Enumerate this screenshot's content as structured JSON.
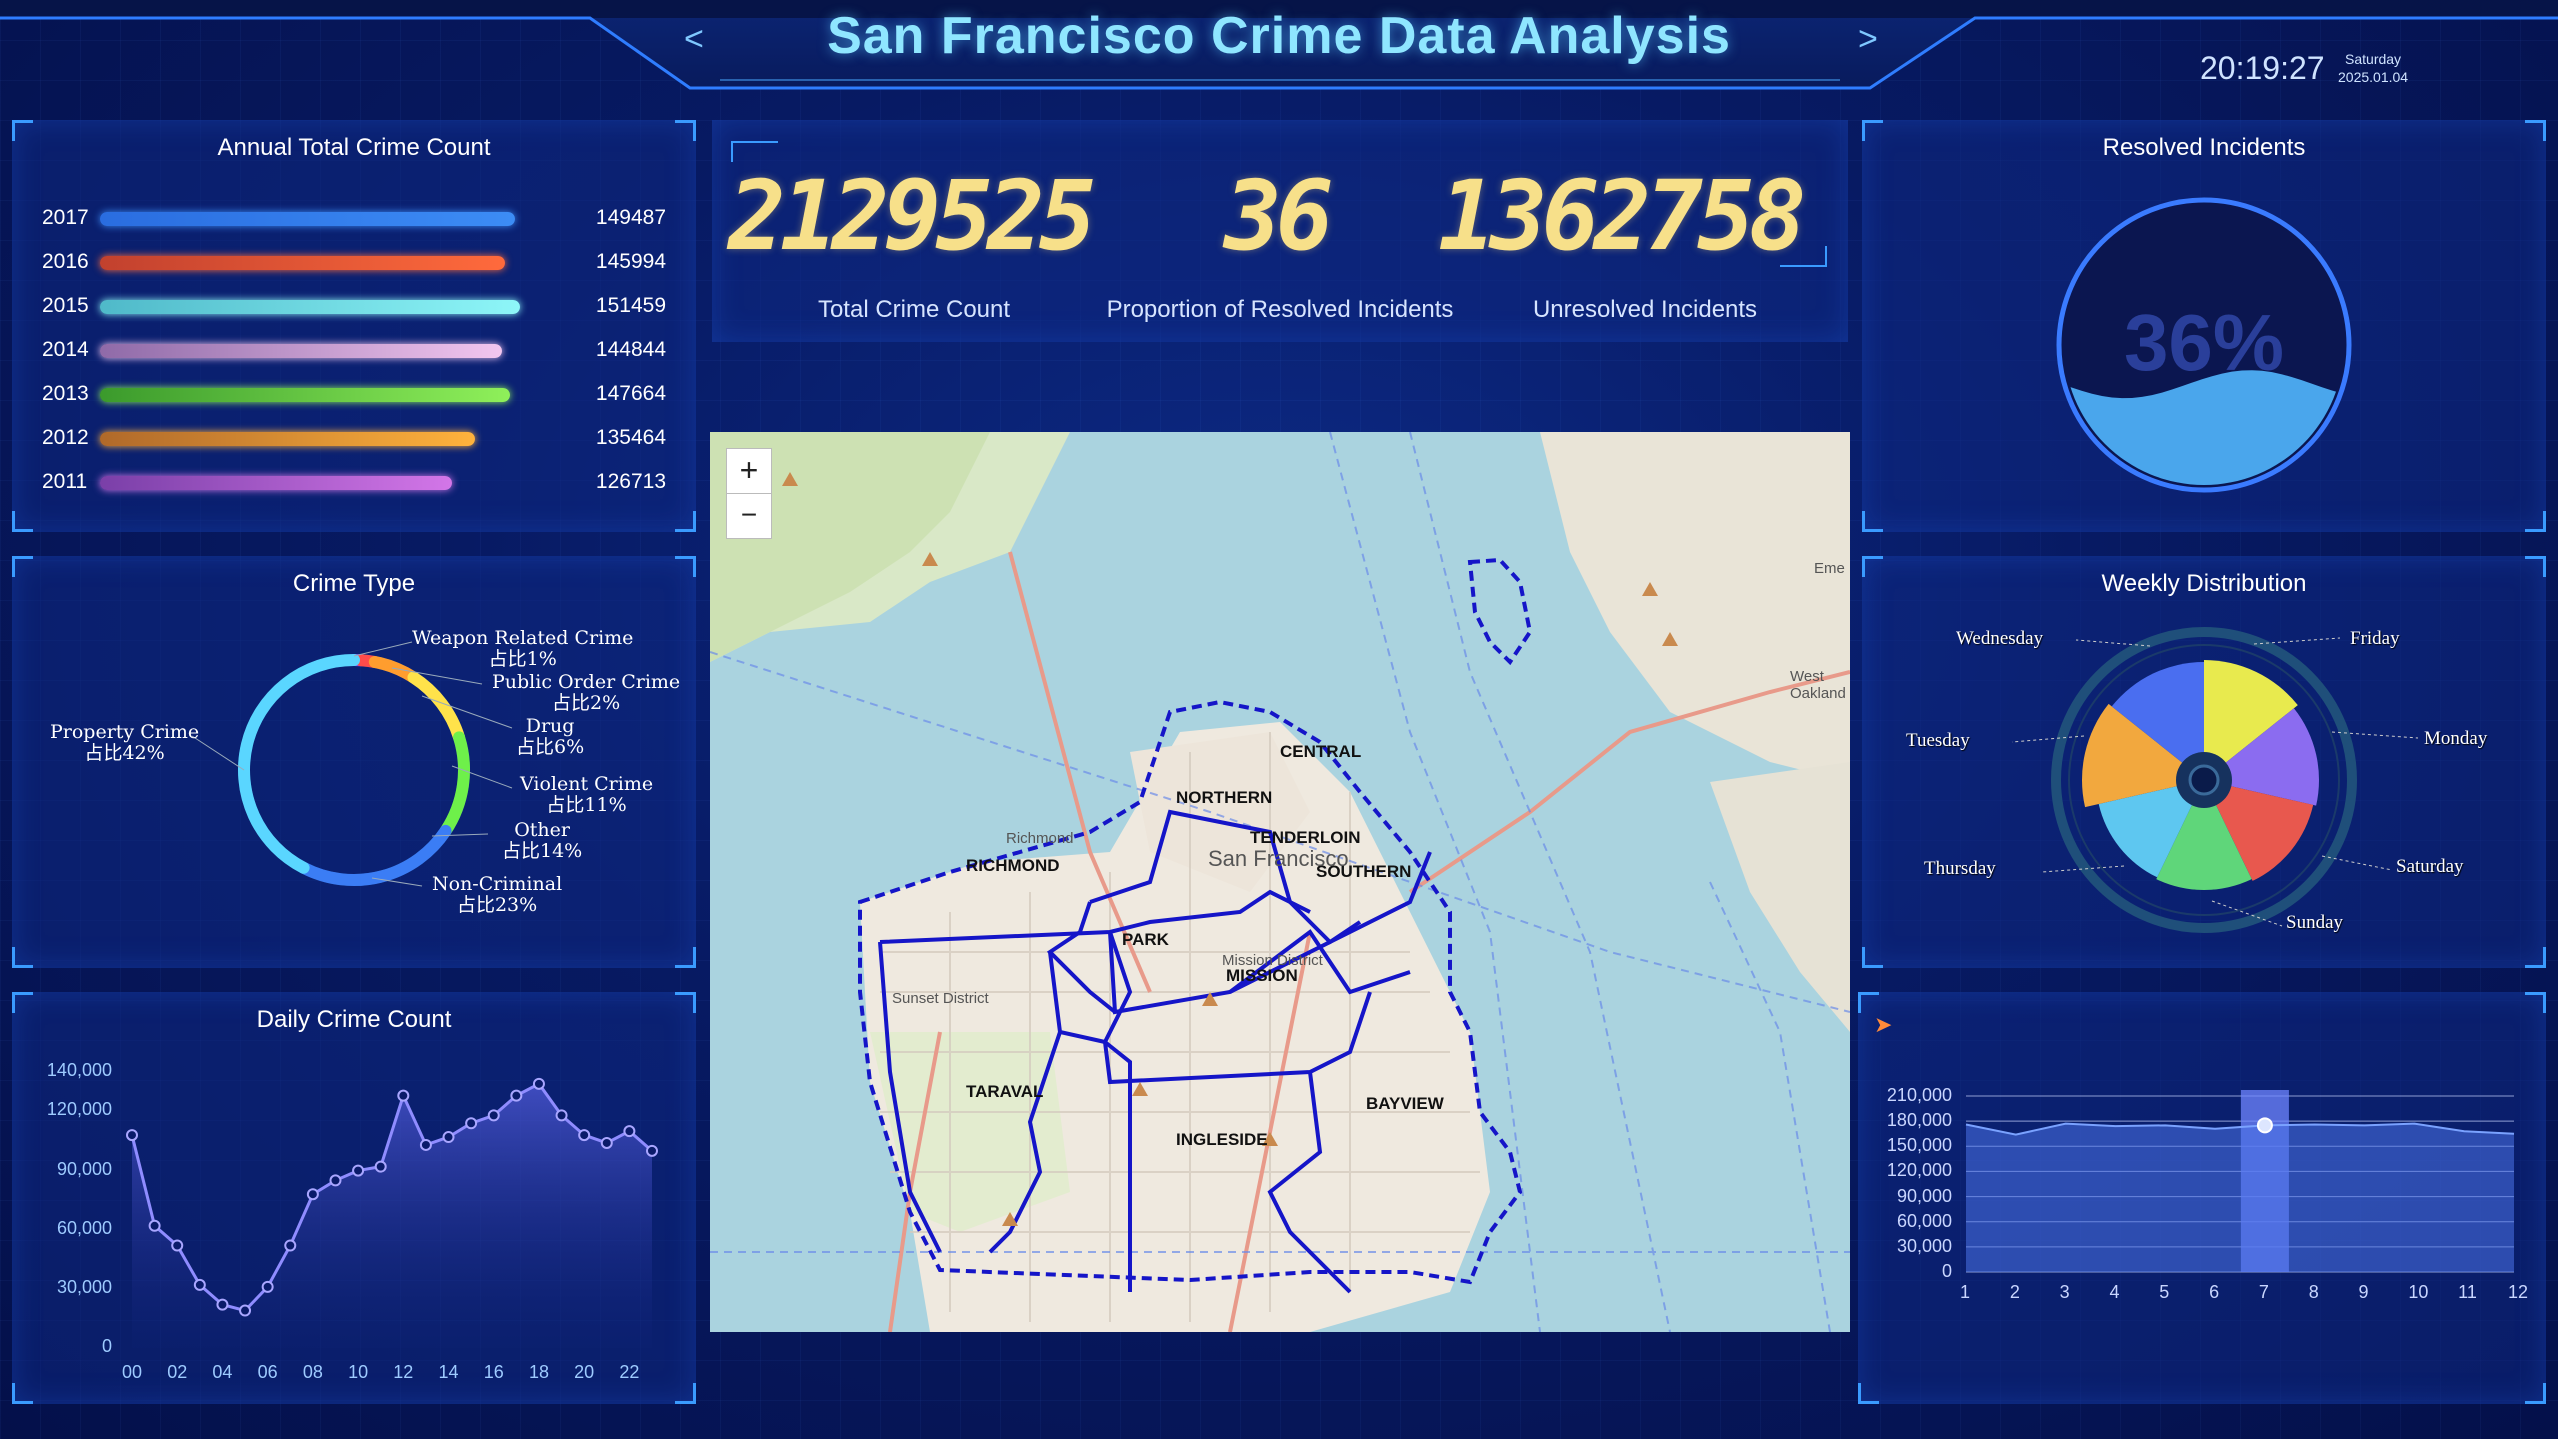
{
  "header": {
    "title": "San Francisco Crime Data Analysis",
    "prev_arrow": "<",
    "next_arrow": ">",
    "time": "20:19:27",
    "weekday": "Saturday",
    "date": "2025.01.04"
  },
  "annual": {
    "title": "Annual Total Crime Count",
    "rows": [
      {
        "year": "2017",
        "value": "149487",
        "fraction": 0.987,
        "color_start": "#2a6de0",
        "color_end": "#3c8cf5"
      },
      {
        "year": "2016",
        "value": "145994",
        "fraction": 0.964,
        "color_start": "#c2412e",
        "color_end": "#ff6a3c"
      },
      {
        "year": "2015",
        "value": "151459",
        "fraction": 1.0,
        "color_start": "#4fb9c9",
        "color_end": "#8ef6f8"
      },
      {
        "year": "2014",
        "value": "144844",
        "fraction": 0.956,
        "color_start": "#8f6aa8",
        "color_end": "#f2c6ef"
      },
      {
        "year": "2013",
        "value": "147664",
        "fraction": 0.975,
        "color_start": "#3b9a2c",
        "color_end": "#8ff05a"
      },
      {
        "year": "2012",
        "value": "135464",
        "fraction": 0.894,
        "color_start": "#b0692a",
        "color_end": "#ffb23c"
      },
      {
        "year": "2011",
        "value": "126713",
        "fraction": 0.837,
        "color_start": "#7a3fa8",
        "color_end": "#d376e8"
      }
    ]
  },
  "crime_type": {
    "title": "Crime Type",
    "slices": [
      {
        "name": "Weapon Related Crime",
        "pct": "占比1%",
        "share": 1,
        "color": "#8a4bff"
      },
      {
        "name": "Public Order Crime",
        "pct": "占比2%",
        "share": 2,
        "color": "#ff4b4b"
      },
      {
        "name": "Drug",
        "pct": "占比6%",
        "share": 6,
        "color": "#ff9d2e"
      },
      {
        "name": "Violent Crime",
        "pct": "占比11%",
        "share": 11,
        "color": "#ffe24a"
      },
      {
        "name": "Other",
        "pct": "占比14%",
        "share": 14,
        "color": "#6ef04a"
      },
      {
        "name": "Non-Criminal",
        "pct": "占比23%",
        "share": 23,
        "color": "#3b7df5"
      },
      {
        "name": "Property Crime",
        "pct": "占比42%",
        "share": 42,
        "color": "#5ad6ff"
      }
    ]
  },
  "daily": {
    "title": "Daily Crime Count",
    "y_ticks": [
      "140,000",
      "120,000",
      "90,000",
      "60,000",
      "30,000",
      "0"
    ],
    "x_ticks": [
      "00",
      "02",
      "04",
      "06",
      "08",
      "10",
      "12",
      "14",
      "16",
      "18",
      "20",
      "22"
    ]
  },
  "kpi": {
    "total": "2129525",
    "resolved_pct": "36",
    "unresolved": "1362758",
    "total_label": "Total Crime Count",
    "resolved_label": "Proportion of Resolved Incidents",
    "unresolved_label": "Unresolved Incidents"
  },
  "map": {
    "zoom_in": "+",
    "zoom_out": "−",
    "districts": [
      "CENTRAL",
      "NORTHERN",
      "RICHMOND",
      "TENDERLOIN",
      "SOUTHERN",
      "PARK",
      "MISSION",
      "TARAVAL",
      "INGLESIDE",
      "BAYVIEW"
    ],
    "place_labels": [
      "San Francisco",
      "Richmond",
      "Sunset District",
      "Mission District",
      "West Oakland",
      "Eme"
    ]
  },
  "resolved": {
    "title": "Resolved Incidents",
    "value": "36%",
    "fraction": 0.36
  },
  "weekly": {
    "title": "Weekly Distribution",
    "days": [
      "Friday",
      "Monday",
      "Saturday",
      "Sunday",
      "Thursday",
      "Tuesday",
      "Wednesday"
    ],
    "colors": [
      "#e8ea4e",
      "#8b6cf0",
      "#e8584e",
      "#5fd67a",
      "#5ec7f0",
      "#f2a83e",
      "#4a6ef0"
    ]
  },
  "monthly": {
    "y_ticks": [
      "210,000",
      "180,000",
      "150,000",
      "120,000",
      "90,000",
      "60,000",
      "30,000",
      "0"
    ],
    "x_ticks": [
      "1",
      "2",
      "3",
      "4",
      "5",
      "6",
      "7",
      "8",
      "9",
      "10",
      "11",
      "12"
    ],
    "highlight_month": "7"
  },
  "chart_data": [
    {
      "type": "bar",
      "title": "Annual Total Crime Count",
      "categories": [
        "2017",
        "2016",
        "2015",
        "2014",
        "2013",
        "2012",
        "2011"
      ],
      "values": [
        149487,
        145994,
        151459,
        144844,
        147664,
        135464,
        126713
      ]
    },
    {
      "type": "pie",
      "title": "Crime Type",
      "categories": [
        "Weapon Related Crime",
        "Public Order Crime",
        "Drug",
        "Violent Crime",
        "Other",
        "Non-Criminal",
        "Property Crime"
      ],
      "values": [
        1,
        2,
        6,
        11,
        14,
        23,
        42
      ]
    },
    {
      "type": "area",
      "title": "Daily Crime Count",
      "x": [
        0,
        1,
        2,
        3,
        4,
        5,
        6,
        7,
        8,
        9,
        10,
        11,
        12,
        13,
        14,
        15,
        16,
        17,
        18,
        19,
        20,
        21,
        22,
        23
      ],
      "values": [
        108000,
        62000,
        52000,
        32000,
        22000,
        19000,
        31000,
        52000,
        78000,
        85000,
        90000,
        92000,
        128000,
        103000,
        107000,
        114000,
        118000,
        128000,
        134000,
        118000,
        108000,
        104000,
        110000,
        100000
      ],
      "ylim": [
        0,
        140000
      ]
    },
    {
      "type": "pie",
      "title": "Weekly Distribution",
      "categories": [
        "Friday",
        "Monday",
        "Saturday",
        "Sunday",
        "Thursday",
        "Tuesday",
        "Wednesday"
      ],
      "values": [
        1,
        1,
        1,
        1,
        1,
        1,
        1
      ]
    },
    {
      "type": "area",
      "x": [
        1,
        2,
        3,
        4,
        5,
        6,
        7,
        8,
        9,
        10,
        11,
        12
      ],
      "values": [
        176000,
        164000,
        177000,
        174000,
        175000,
        171000,
        175000,
        176000,
        175000,
        177000,
        168000,
        165000
      ],
      "ylim": [
        0,
        210000
      ]
    }
  ]
}
